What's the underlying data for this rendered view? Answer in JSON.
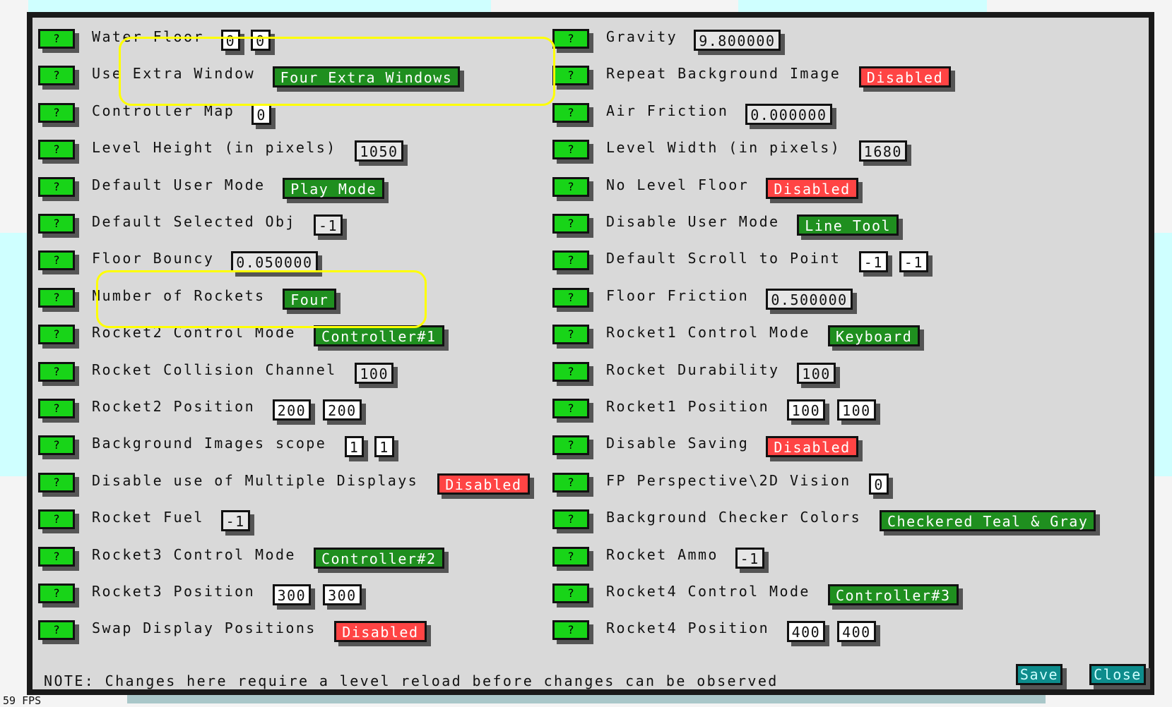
{
  "fps": "59 FPS",
  "colors": {
    "help_green": "#18d418",
    "value_green": "#1f8f1f",
    "value_red": "#ff4444",
    "button_teal": "#0d8c8c",
    "highlight": "#ffff00"
  },
  "help_label": "?",
  "left": [
    {
      "label": "Water Floor",
      "values": [
        {
          "text": "0",
          "style": "white"
        },
        {
          "text": "0",
          "style": "white"
        }
      ]
    },
    {
      "label": "Use Extra Window",
      "values": [
        {
          "text": "Four Extra Windows",
          "style": "green"
        }
      ]
    },
    {
      "label": "Controller Map",
      "values": [
        {
          "text": "0",
          "style": "white"
        }
      ]
    },
    {
      "label": "Level Height (in pixels)",
      "values": [
        {
          "text": "1050",
          "style": "gray"
        }
      ]
    },
    {
      "label": "Default User Mode",
      "values": [
        {
          "text": "Play Mode",
          "style": "green"
        }
      ]
    },
    {
      "label": "Default Selected Obj",
      "values": [
        {
          "text": "-1",
          "style": "gray"
        }
      ]
    },
    {
      "label": "Floor Bouncy",
      "values": [
        {
          "text": "0.050000",
          "style": "gray"
        }
      ]
    },
    {
      "label": "Number of Rockets",
      "values": [
        {
          "text": "Four",
          "style": "green"
        }
      ]
    },
    {
      "label": "Rocket2 Control Mode",
      "values": [
        {
          "text": "Controller#1",
          "style": "green"
        }
      ]
    },
    {
      "label": "Rocket Collision Channel",
      "values": [
        {
          "text": "100",
          "style": "gray"
        }
      ]
    },
    {
      "label": "Rocket2 Position",
      "values": [
        {
          "text": "200",
          "style": "white"
        },
        {
          "text": "200",
          "style": "white"
        }
      ]
    },
    {
      "label": "Background Images scope",
      "values": [
        {
          "text": "1",
          "style": "white"
        },
        {
          "text": "1",
          "style": "white"
        }
      ]
    },
    {
      "label": "Disable use of Multiple Displays",
      "values": [
        {
          "text": "Disabled",
          "style": "red"
        }
      ]
    },
    {
      "label": "Rocket Fuel",
      "values": [
        {
          "text": "-1",
          "style": "gray"
        }
      ]
    },
    {
      "label": "Rocket3 Control Mode",
      "values": [
        {
          "text": "Controller#2",
          "style": "green"
        }
      ]
    },
    {
      "label": "Rocket3 Position",
      "values": [
        {
          "text": "300",
          "style": "white"
        },
        {
          "text": "300",
          "style": "white"
        }
      ]
    },
    {
      "label": "Swap Display Positions",
      "values": [
        {
          "text": "Disabled",
          "style": "red"
        }
      ]
    }
  ],
  "right": [
    {
      "label": "Gravity",
      "values": [
        {
          "text": "9.800000",
          "style": "gray"
        }
      ]
    },
    {
      "label": "Repeat Background Image",
      "values": [
        {
          "text": "Disabled",
          "style": "red"
        }
      ]
    },
    {
      "label": "Air Friction",
      "values": [
        {
          "text": "0.000000",
          "style": "gray"
        }
      ]
    },
    {
      "label": "Level Width (in pixels)",
      "values": [
        {
          "text": "1680",
          "style": "gray"
        }
      ]
    },
    {
      "label": "No Level Floor",
      "values": [
        {
          "text": "Disabled",
          "style": "red"
        }
      ]
    },
    {
      "label": "Disable User Mode",
      "values": [
        {
          "text": "Line Tool",
          "style": "green"
        }
      ]
    },
    {
      "label": "Default Scroll to Point",
      "values": [
        {
          "text": "-1",
          "style": "white"
        },
        {
          "text": "-1",
          "style": "white"
        }
      ]
    },
    {
      "label": "Floor Friction",
      "values": [
        {
          "text": "0.500000",
          "style": "gray"
        }
      ]
    },
    {
      "label": "Rocket1 Control Mode",
      "values": [
        {
          "text": "Keyboard",
          "style": "green"
        }
      ]
    },
    {
      "label": "Rocket Durability",
      "values": [
        {
          "text": "100",
          "style": "gray"
        }
      ]
    },
    {
      "label": "Rocket1 Position",
      "values": [
        {
          "text": "100",
          "style": "white"
        },
        {
          "text": "100",
          "style": "white"
        }
      ]
    },
    {
      "label": "Disable Saving",
      "values": [
        {
          "text": "Disabled",
          "style": "red"
        }
      ]
    },
    {
      "label": "FP Perspective\\2D Vision",
      "values": [
        {
          "text": "0",
          "style": "white"
        }
      ]
    },
    {
      "label": "Background Checker Colors",
      "values": [
        {
          "text": "Checkered Teal & Gray",
          "style": "green"
        }
      ]
    },
    {
      "label": "Rocket Ammo",
      "values": [
        {
          "text": "-1",
          "style": "gray"
        }
      ]
    },
    {
      "label": "Rocket4 Control Mode",
      "values": [
        {
          "text": "Controller#3",
          "style": "green"
        }
      ]
    },
    {
      "label": "Rocket4 Position",
      "values": [
        {
          "text": "400",
          "style": "white"
        },
        {
          "text": "400",
          "style": "white"
        }
      ]
    }
  ],
  "note": "NOTE: Changes here require a level reload before changes can be observed",
  "buttons": {
    "save": "Save",
    "close": "Close"
  }
}
